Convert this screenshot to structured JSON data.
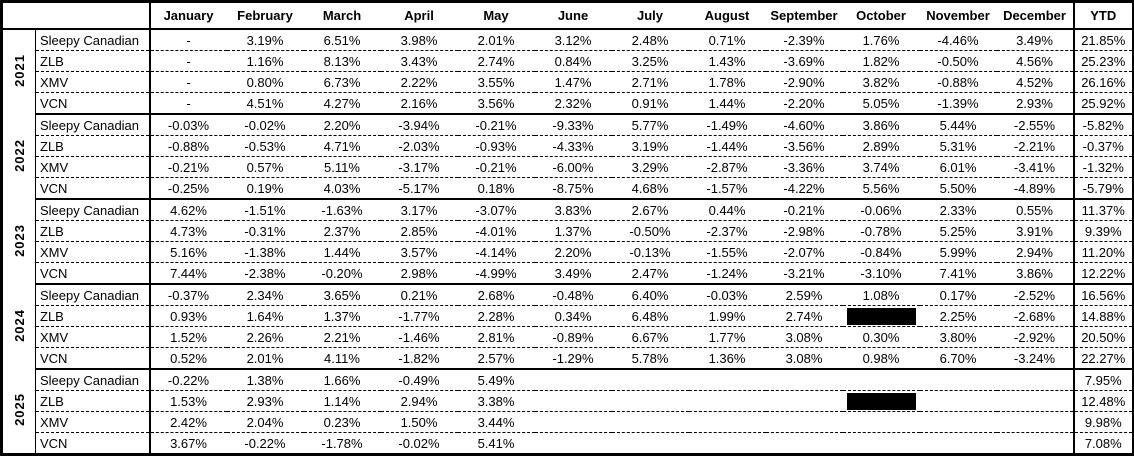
{
  "table": {
    "corner_label": "",
    "redacted_marker": "REDACTED",
    "columns": [
      "January",
      "February",
      "March",
      "April",
      "May",
      "June",
      "July",
      "August",
      "September",
      "October",
      "November",
      "December",
      "YTD"
    ],
    "groups": [
      {
        "year": "2021",
        "rows": [
          {
            "name": "Sleepy Canadian",
            "values": [
              "-",
              "3.19%",
              "6.51%",
              "3.98%",
              "2.01%",
              "3.12%",
              "2.48%",
              "0.71%",
              "-2.39%",
              "1.76%",
              "-4.46%",
              "3.49%",
              "21.85%"
            ]
          },
          {
            "name": "ZLB",
            "values": [
              "-",
              "1.16%",
              "8.13%",
              "3.43%",
              "2.74%",
              "0.84%",
              "3.25%",
              "1.43%",
              "-3.69%",
              "1.82%",
              "-0.50%",
              "4.56%",
              "25.23%"
            ]
          },
          {
            "name": "XMV",
            "values": [
              "-",
              "0.80%",
              "6.73%",
              "2.22%",
              "3.55%",
              "1.47%",
              "2.71%",
              "1.78%",
              "-2.90%",
              "3.82%",
              "-0.88%",
              "4.52%",
              "26.16%"
            ]
          },
          {
            "name": "VCN",
            "values": [
              "-",
              "4.51%",
              "4.27%",
              "2.16%",
              "3.56%",
              "2.32%",
              "0.91%",
              "1.44%",
              "-2.20%",
              "5.05%",
              "-1.39%",
              "2.93%",
              "25.92%"
            ]
          }
        ]
      },
      {
        "year": "2022",
        "rows": [
          {
            "name": "Sleepy Canadian",
            "values": [
              "-0.03%",
              "-0.02%",
              "2.20%",
              "-3.94%",
              "-0.21%",
              "-9.33%",
              "5.77%",
              "-1.49%",
              "-4.60%",
              "3.86%",
              "5.44%",
              "-2.55%",
              "-5.82%"
            ]
          },
          {
            "name": "ZLB",
            "values": [
              "-0.88%",
              "-0.53%",
              "4.71%",
              "-2.03%",
              "-0.93%",
              "-4.33%",
              "3.19%",
              "-1.44%",
              "-3.56%",
              "2.89%",
              "5.31%",
              "-2.21%",
              "-0.37%"
            ]
          },
          {
            "name": "XMV",
            "values": [
              "-0.21%",
              "0.57%",
              "5.11%",
              "-3.17%",
              "-0.21%",
              "-6.00%",
              "3.29%",
              "-2.87%",
              "-3.36%",
              "3.74%",
              "6.01%",
              "-3.41%",
              "-1.32%"
            ]
          },
          {
            "name": "VCN",
            "values": [
              "-0.25%",
              "0.19%",
              "4.03%",
              "-5.17%",
              "0.18%",
              "-8.75%",
              "4.68%",
              "-1.57%",
              "-4.22%",
              "5.56%",
              "5.50%",
              "-4.89%",
              "-5.79%"
            ]
          }
        ]
      },
      {
        "year": "2023",
        "rows": [
          {
            "name": "Sleepy Canadian",
            "values": [
              "4.62%",
              "-1.51%",
              "-1.63%",
              "3.17%",
              "-3.07%",
              "3.83%",
              "2.67%",
              "0.44%",
              "-0.21%",
              "-0.06%",
              "2.33%",
              "0.55%",
              "11.37%"
            ]
          },
          {
            "name": "ZLB",
            "values": [
              "4.73%",
              "-0.31%",
              "2.37%",
              "2.85%",
              "-4.01%",
              "1.37%",
              "-0.50%",
              "-2.37%",
              "-2.98%",
              "-0.78%",
              "5.25%",
              "3.91%",
              "9.39%"
            ]
          },
          {
            "name": "XMV",
            "values": [
              "5.16%",
              "-1.38%",
              "1.44%",
              "3.57%",
              "-4.14%",
              "2.20%",
              "-0.13%",
              "-1.55%",
              "-2.07%",
              "-0.84%",
              "5.99%",
              "2.94%",
              "11.20%"
            ]
          },
          {
            "name": "VCN",
            "values": [
              "7.44%",
              "-2.38%",
              "-0.20%",
              "2.98%",
              "-4.99%",
              "3.49%",
              "2.47%",
              "-1.24%",
              "-3.21%",
              "-3.10%",
              "7.41%",
              "3.86%",
              "12.22%"
            ]
          }
        ]
      },
      {
        "year": "2024",
        "rows": [
          {
            "name": "Sleepy Canadian",
            "values": [
              "-0.37%",
              "2.34%",
              "3.65%",
              "0.21%",
              "2.68%",
              "-0.48%",
              "6.40%",
              "-0.03%",
              "2.59%",
              "1.08%",
              "0.17%",
              "-2.52%",
              "16.56%"
            ]
          },
          {
            "name": "ZLB",
            "values": [
              "0.93%",
              "1.64%",
              "1.37%",
              "-1.77%",
              "2.28%",
              "0.34%",
              "6.48%",
              "1.99%",
              "2.74%",
              "REDACTED",
              "2.25%",
              "-2.68%",
              "14.88%"
            ]
          },
          {
            "name": "XMV",
            "values": [
              "1.52%",
              "2.26%",
              "2.21%",
              "-1.46%",
              "2.81%",
              "-0.89%",
              "6.67%",
              "1.77%",
              "3.08%",
              "0.30%",
              "3.80%",
              "-2.92%",
              "20.50%"
            ]
          },
          {
            "name": "VCN",
            "values": [
              "0.52%",
              "2.01%",
              "4.11%",
              "-1.82%",
              "2.57%",
              "-1.29%",
              "5.78%",
              "1.36%",
              "3.08%",
              "0.98%",
              "6.70%",
              "-3.24%",
              "22.27%"
            ]
          }
        ]
      },
      {
        "year": "2025",
        "rows": [
          {
            "name": "Sleepy Canadian",
            "values": [
              "-0.22%",
              "1.38%",
              "1.66%",
              "-0.49%",
              "5.49%",
              "",
              "",
              "",
              "",
              "",
              "",
              "",
              "7.95%"
            ]
          },
          {
            "name": "ZLB",
            "values": [
              "1.53%",
              "2.93%",
              "1.14%",
              "2.94%",
              "3.38%",
              "",
              "",
              "",
              "",
              "REDACTED",
              "",
              "",
              "12.48%"
            ]
          },
          {
            "name": "XMV",
            "values": [
              "2.42%",
              "2.04%",
              "0.23%",
              "1.50%",
              "3.44%",
              "",
              "",
              "",
              "",
              "",
              "",
              "",
              "9.98%"
            ]
          },
          {
            "name": "VCN",
            "values": [
              "3.67%",
              "-0.22%",
              "-1.78%",
              "-0.02%",
              "5.41%",
              "",
              "",
              "",
              "",
              "",
              "",
              "",
              "7.08%"
            ]
          }
        ]
      }
    ]
  }
}
